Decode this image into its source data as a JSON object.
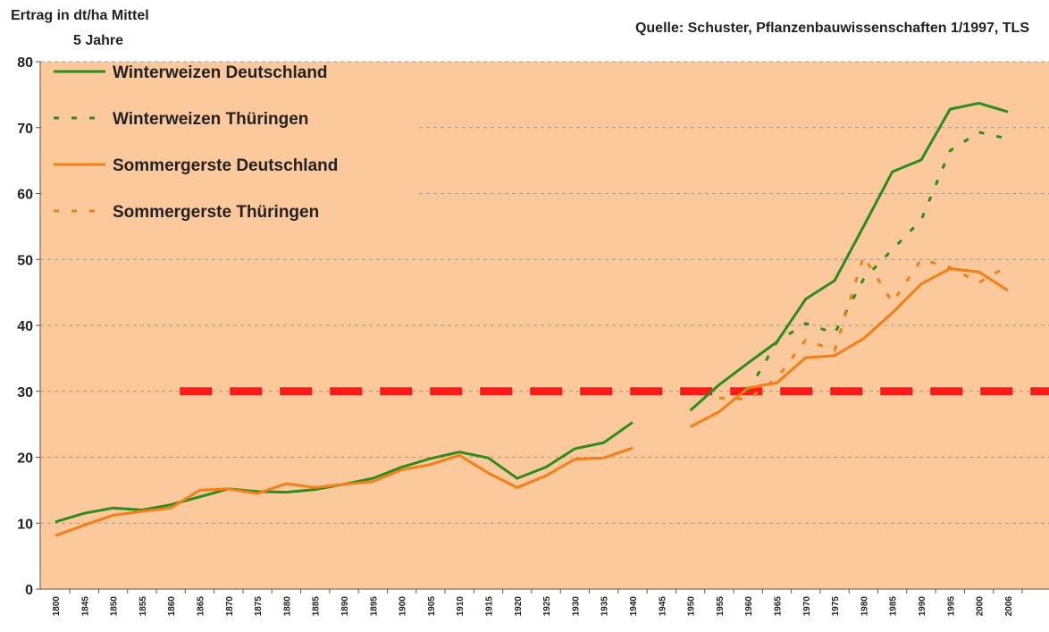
{
  "chart_data": {
    "type": "line",
    "y_label": [
      "Ertrag in dt/ha Mittel",
      "5 Jahre"
    ],
    "source": "Quelle: Schuster, Pflanzenbauwissenschaften 1/1997, TLS",
    "categories": [
      "1800",
      "1845",
      "1850",
      "1855",
      "1860",
      "1865",
      "1870",
      "1875",
      "1880",
      "1885",
      "1890",
      "1895",
      "1900",
      "1905",
      "1910",
      "1915",
      "1920",
      "1925",
      "1930",
      "1935",
      "1940",
      "1945",
      "1950",
      "1955",
      "1960",
      "1965",
      "1970",
      "1975",
      "1980",
      "1985",
      "1990",
      "1995",
      "2000",
      "2006"
    ],
    "ylim": [
      0,
      80
    ],
    "yticks": [
      0,
      10,
      20,
      30,
      40,
      50,
      60,
      70,
      80
    ],
    "grid": true,
    "legend": "top-left",
    "background": "#fbc99c",
    "reference_line": {
      "value": 30,
      "color": "#ff1a1a",
      "from": "1860"
    },
    "series": [
      {
        "name": "Winterweizen Deutschland",
        "color": "#2e8b1e",
        "dash": false,
        "values": [
          10.2,
          11.5,
          12.3,
          12.0,
          12.8,
          14.0,
          15.2,
          14.8,
          14.7,
          15.1,
          15.9,
          16.8,
          18.5,
          19.8,
          20.8,
          19.9,
          16.8,
          18.5,
          21.3,
          22.2,
          25.3,
          null,
          27.1,
          31,
          34.3,
          37.5,
          44,
          46.8,
          55,
          63.3,
          65.1,
          72.8,
          73.7,
          72.4
        ]
      },
      {
        "name": "Winterweizen Thüringen",
        "color": "#2e8b1e",
        "dash": true,
        "values": [
          null,
          null,
          null,
          null,
          null,
          null,
          null,
          null,
          null,
          null,
          null,
          null,
          null,
          null,
          null,
          null,
          null,
          null,
          null,
          null,
          null,
          null,
          null,
          null,
          30,
          37.5,
          40.3,
          38.8,
          47,
          51.5,
          56,
          66.5,
          69.3,
          68.3
        ]
      },
      {
        "name": "Sommergerste Deutschland",
        "color": "#f47f17",
        "dash": false,
        "values": [
          8.1,
          9.7,
          11.2,
          11.8,
          12.3,
          15.0,
          15.2,
          14.5,
          16.0,
          15.4,
          15.9,
          16.3,
          18.1,
          18.9,
          20.3,
          17.6,
          15.4,
          17.2,
          19.7,
          19.9,
          21.4,
          null,
          24.6,
          26.9,
          30.5,
          31.3,
          35.1,
          35.4,
          38,
          41.9,
          46.3,
          48.6,
          48.1,
          45.3
        ]
      },
      {
        "name": "Sommergerste Thüringen",
        "color": "#f47f17",
        "dash": true,
        "values": [
          null,
          null,
          null,
          null,
          null,
          null,
          null,
          null,
          null,
          null,
          null,
          null,
          null,
          null,
          null,
          null,
          null,
          null,
          null,
          null,
          null,
          null,
          null,
          29,
          28.8,
          32,
          37.8,
          36.2,
          50.5,
          43.5,
          50,
          48.8,
          46.5,
          49
        ]
      }
    ]
  }
}
